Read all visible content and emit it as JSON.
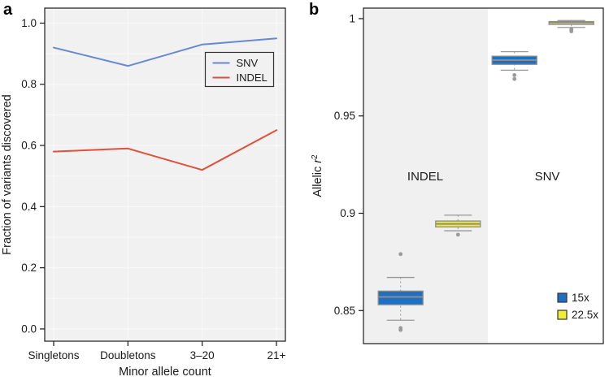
{
  "figure": {
    "panel_a_label": "a",
    "panel_b_label": "b"
  },
  "colors": {
    "snv_line": "#6788d2",
    "indel_line": "#e0503a",
    "box_blue": "#1e70c4",
    "box_yellow": "#f1ee30",
    "box_border": "#8c8c8c",
    "whisker": "#999999",
    "outlier": "#9a9a9a",
    "panel_bg": "#f1f1f1",
    "band_bg": "#f0f0f0",
    "axis": "#1a1a1a",
    "grid": "#fafafa"
  },
  "chart_data": [
    {
      "type": "line",
      "panel": "a",
      "xlabel": "Minor allele count",
      "ylabel": "Fraction of variants discovered",
      "categories": [
        "Singletons",
        "Doubletons",
        "3–20",
        "21+"
      ],
      "yticks": [
        0.0,
        0.2,
        0.4,
        0.6,
        0.8,
        1.0
      ],
      "ytick_labels": [
        "0.0",
        "0.2",
        "0.4",
        "0.6",
        "0.8",
        "1.0"
      ],
      "ylim": [
        -0.04,
        1.049
      ],
      "grid": true,
      "minor_grid_step": 0.1,
      "legend_position": "upper right",
      "series": [
        {
          "name": "SNV",
          "color": "#6788d2",
          "values": [
            0.92,
            0.86,
            0.93,
            0.95
          ]
        },
        {
          "name": "INDEL",
          "color": "#e0503a",
          "values": [
            0.58,
            0.59,
            0.52,
            0.65
          ]
        }
      ]
    },
    {
      "type": "boxplot",
      "panel": "b",
      "ylabel": {
        "prefix": "Allelic ",
        "italic": "r",
        "sup": "2"
      },
      "yticks": [
        0.85,
        0.9,
        0.95,
        1
      ],
      "ytick_labels": [
        "0.85",
        "0.9",
        "0.95",
        "1"
      ],
      "ylim": [
        0.833,
        1.0054
      ],
      "groups": [
        {
          "name": "INDEL",
          "shaded": true,
          "boxes": [
            {
              "coverage": "15x",
              "color": "#1e70c4",
              "q1": 0.853,
              "q3": 0.86,
              "median": 0.857,
              "whisker_low": 0.845,
              "whisker_high": 0.867,
              "outliers": [
                0.879,
                0.841,
                0.84
              ]
            },
            {
              "coverage": "22.5x",
              "color": "#f1ee30",
              "q1": 0.893,
              "q3": 0.896,
              "median": 0.8945,
              "whisker_low": 0.891,
              "whisker_high": 0.899,
              "outliers": [
                0.889
              ]
            }
          ]
        },
        {
          "name": "SNV",
          "shaded": false,
          "boxes": [
            {
              "coverage": "15x",
              "color": "#1e70c4",
              "q1": 0.9765,
              "q3": 0.9807,
              "median": 0.9787,
              "whisker_low": 0.9735,
              "whisker_high": 0.983,
              "outliers": [
                0.971,
                0.969
              ]
            },
            {
              "coverage": "22.5x",
              "color": "#f1ee30",
              "q1": 0.997,
              "q3": 0.9985,
              "median": 0.998,
              "whisker_low": 0.9955,
              "whisker_high": 0.999,
              "outliers": [
                0.9945,
                0.9935
              ]
            }
          ]
        }
      ],
      "legend": [
        {
          "label": "15x",
          "color": "#1e70c4"
        },
        {
          "label": "22.5x",
          "color": "#f1ee30"
        }
      ]
    }
  ]
}
